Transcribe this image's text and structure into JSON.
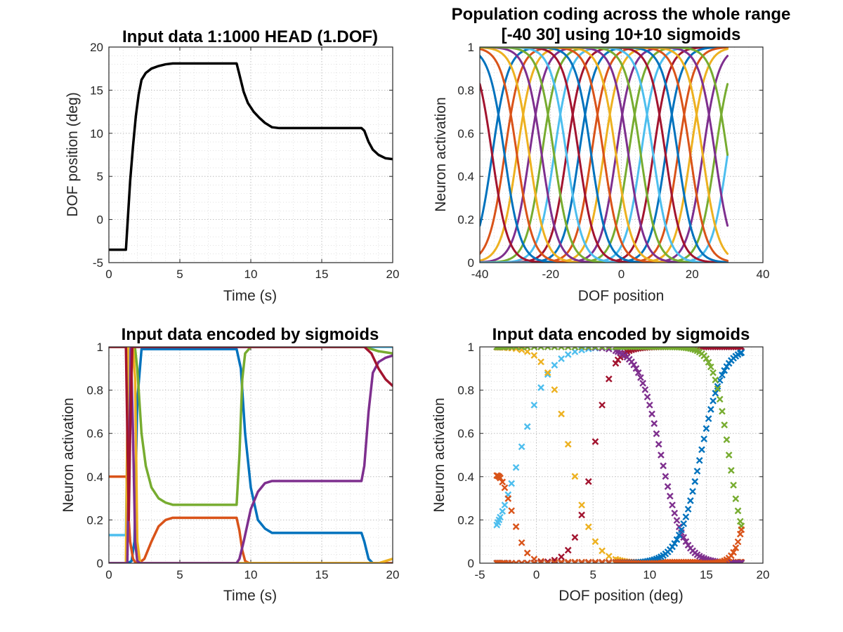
{
  "colors": {
    "black": "#000000",
    "blue": "#0072BD",
    "orange": "#D95319",
    "yellow": "#EDB120",
    "purple": "#7E2F8E",
    "green": "#77AC30",
    "cyan": "#4DBEEE",
    "red": "#A2142F"
  },
  "chart_data": [
    {
      "id": "p1",
      "type": "line",
      "title": "Input data 1:1000 HEAD (1.DOF)",
      "xlabel": "Time (s)",
      "ylabel": "DOF position (deg)",
      "xlim": [
        0,
        20
      ],
      "ylim": [
        -5,
        20
      ],
      "xticks": [
        0,
        5,
        10,
        15,
        20
      ],
      "yticks": [
        -5,
        0,
        5,
        10,
        15,
        20
      ],
      "grid": true,
      "series": [
        {
          "color": "black",
          "x": [
            0,
            1.2,
            1.35,
            1.5,
            1.7,
            1.9,
            2.1,
            2.3,
            2.6,
            3.0,
            3.5,
            4.0,
            4.5,
            5.0,
            9.0,
            9.2,
            9.5,
            9.8,
            10.2,
            10.6,
            11.0,
            11.5,
            12.0,
            17.8,
            18.0,
            18.3,
            18.6,
            19.0,
            19.5,
            20.0
          ],
          "y": [
            -3.5,
            -3.5,
            0.5,
            4.5,
            8.5,
            12.0,
            14.5,
            16.2,
            17.0,
            17.5,
            17.8,
            18.0,
            18.1,
            18.1,
            18.1,
            16.8,
            14.8,
            13.5,
            12.5,
            11.8,
            11.2,
            10.7,
            10.6,
            10.6,
            10.3,
            9.0,
            8.1,
            7.5,
            7.1,
            7.0
          ]
        }
      ]
    },
    {
      "id": "p2",
      "type": "line",
      "title": "Population coding across the whole range",
      "subtitle": "[-40 30] using 10+10 sigmoids",
      "xlabel": "DOF position",
      "ylabel": "Neuron activation",
      "xlim": [
        -40,
        40
      ],
      "ylim": [
        0,
        1
      ],
      "xticks": [
        -40,
        -20,
        0,
        20,
        40
      ],
      "yticks": [
        0,
        0.2,
        0.4,
        0.6,
        0.8,
        1
      ],
      "grid": true,
      "sigmoid_range": [
        -40,
        30
      ],
      "sigmoid_centers": [
        -36.5,
        -33,
        -29.5,
        -26,
        -22.5,
        -19,
        -15.5,
        -12,
        -8.5,
        -5,
        -1.5,
        2,
        5.5,
        9,
        12.5,
        16,
        19.5,
        23,
        26.5,
        30
      ],
      "sigmoid_slope": 0.45,
      "color_cycle": [
        "blue",
        "orange",
        "yellow",
        "purple",
        "green",
        "cyan",
        "red"
      ]
    },
    {
      "id": "p3",
      "type": "line",
      "title": "Input data encoded by sigmoids",
      "xlabel": "Time (s)",
      "ylabel": "Neuron activation",
      "xlim": [
        0,
        20
      ],
      "ylim": [
        0,
        1
      ],
      "xticks": [
        0,
        5,
        10,
        15,
        20
      ],
      "yticks": [
        0,
        0.2,
        0.4,
        0.6,
        0.8,
        1
      ],
      "grid": true,
      "series": [
        {
          "color": "cyan",
          "x": [
            0,
            1.2,
            1.3,
            1.45,
            20
          ],
          "y": [
            0.13,
            0.13,
            0.6,
            1.0,
            1.0
          ]
        },
        {
          "color": "blue",
          "x": [
            0,
            1.3,
            1.6,
            1.8,
            2.0,
            2.3,
            9.0,
            9.3,
            9.6,
            10.0,
            10.5,
            11.0,
            11.5,
            12.0,
            17.8,
            18.0,
            18.3,
            18.6,
            20
          ],
          "y": [
            0.0,
            0.0,
            0.01,
            0.1,
            0.75,
            0.99,
            0.99,
            0.9,
            0.6,
            0.35,
            0.2,
            0.16,
            0.14,
            0.14,
            0.14,
            0.1,
            0.02,
            0.0,
            0.0
          ]
        },
        {
          "color": "green",
          "x": [
            0,
            1.7,
            1.85,
            2.0,
            2.3,
            2.6,
            3.0,
            3.5,
            4.0,
            4.5,
            9.0,
            9.2,
            9.4,
            9.6,
            10.0,
            17.8,
            18.0,
            18.5,
            19.0,
            20
          ],
          "y": [
            1.0,
            1.0,
            0.99,
            0.9,
            0.6,
            0.45,
            0.35,
            0.3,
            0.28,
            0.27,
            0.27,
            0.5,
            0.85,
            0.97,
            1.0,
            1.0,
            1.0,
            0.99,
            0.98,
            0.97
          ]
        },
        {
          "color": "orange",
          "x": [
            0,
            1.25,
            1.35,
            1.5,
            1.7,
            1.9,
            2.1,
            2.5,
            3.0,
            3.5,
            4.0,
            4.5,
            9.0,
            9.2,
            9.4,
            9.6,
            9.9,
            20
          ],
          "y": [
            0.4,
            0.4,
            0.25,
            0.1,
            0.02,
            0.0,
            0.0,
            0.02,
            0.1,
            0.17,
            0.2,
            0.21,
            0.21,
            0.15,
            0.06,
            0.01,
            0.0,
            0.0
          ]
        },
        {
          "color": "yellow",
          "x": [
            0,
            1.2,
            1.35,
            1.5,
            1.7,
            1.85,
            2.0,
            2.2,
            19.0,
            19.5,
            20
          ],
          "y": [
            0.0,
            0.0,
            1.0,
            1.0,
            1.0,
            0.85,
            0.1,
            0.0,
            0.0,
            0.01,
            0.02
          ]
        },
        {
          "color": "purple",
          "x": [
            0,
            1.3,
            1.45,
            1.55,
            1.7,
            1.85,
            2.0,
            2.2,
            9.0,
            9.2,
            9.5,
            10.0,
            10.5,
            11.0,
            11.5,
            17.8,
            18.0,
            18.3,
            18.6,
            19.0,
            19.5,
            20
          ],
          "y": [
            0.0,
            0.0,
            0.6,
            1.0,
            0.6,
            0.1,
            0.01,
            0.0,
            0.0,
            0.02,
            0.1,
            0.25,
            0.33,
            0.37,
            0.38,
            0.38,
            0.45,
            0.7,
            0.88,
            0.93,
            0.95,
            0.96
          ]
        },
        {
          "color": "red",
          "x": [
            0,
            1.2,
            1.3,
            1.4,
            1.5,
            1.65,
            1.8,
            18.0,
            18.5,
            19.0,
            19.5,
            20
          ],
          "y": [
            1.0,
            1.0,
            0.6,
            0.2,
            0.6,
            1.0,
            1.0,
            1.0,
            0.97,
            0.9,
            0.85,
            0.82
          ]
        }
      ]
    },
    {
      "id": "p4",
      "type": "scatter",
      "title": "Input data encoded by sigmoids",
      "xlabel": "DOF position (deg)",
      "ylabel": "Neuron activation",
      "xlim": [
        -5,
        20
      ],
      "ylim": [
        0,
        1
      ],
      "xticks": [
        -5,
        0,
        5,
        10,
        15,
        20
      ],
      "yticks": [
        0,
        0.2,
        0.4,
        0.6,
        0.8,
        1
      ],
      "grid": true,
      "marker": "x",
      "samples": [
        -3.5,
        -3.4,
        -3.3,
        -3.2,
        -3.0,
        -2.8,
        -2.5,
        -2.2,
        -1.8,
        -1.3,
        -0.8,
        -0.2,
        0.4,
        1.0,
        1.6,
        2.2,
        2.8,
        3.4,
        4.0,
        4.6,
        5.2,
        5.8,
        6.4,
        7.0,
        7.2,
        7.4,
        7.6,
        7.8,
        8.0,
        8.2,
        8.4,
        8.6,
        8.8,
        9.0,
        9.2,
        9.4,
        9.6,
        9.8,
        10.0,
        10.2,
        10.4,
        10.6,
        10.8,
        11.0,
        11.2,
        11.4,
        11.6,
        11.8,
        12.0,
        12.2,
        12.4,
        12.6,
        12.8,
        13.0,
        13.2,
        13.4,
        13.6,
        13.8,
        14.0,
        14.2,
        14.4,
        14.6,
        14.8,
        15.0,
        15.2,
        15.4,
        15.6,
        15.8,
        16.0,
        16.2,
        16.4,
        16.6,
        16.8,
        17.0,
        17.2,
        17.4,
        17.6,
        17.8,
        18.0,
        18.1
      ],
      "series": [
        {
          "color": "cyan",
          "center": -1.5,
          "width": 1.3,
          "kind": "rise"
        },
        {
          "color": "yellow",
          "center": 3.0,
          "width": 1.0,
          "kind": "fall"
        },
        {
          "color": "orange",
          "center": 0.0,
          "width": 2.0,
          "kind": "bump",
          "peak": 0.4,
          "x0": -3.5
        },
        {
          "color": "red",
          "center": 5.0,
          "width": 0.8,
          "kind": "rise"
        },
        {
          "color": "purple",
          "center": 11.0,
          "width": 1.0,
          "kind": "fall"
        },
        {
          "color": "blue",
          "center": 14.5,
          "width": 1.0,
          "kind": "rise"
        },
        {
          "color": "green",
          "center": 17.0,
          "width": 0.7,
          "kind": "fall"
        },
        {
          "color": "orange",
          "center": 18.5,
          "width": 0.5,
          "kind": "rise2"
        }
      ]
    }
  ]
}
